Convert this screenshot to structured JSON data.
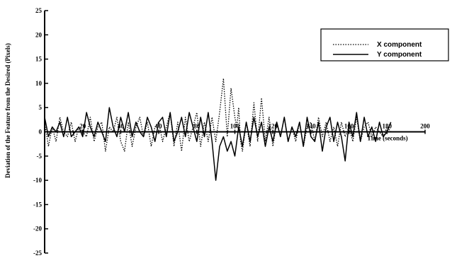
{
  "chart_data": {
    "type": "line",
    "title": "",
    "xlabel": "Time (seconds)",
    "ylabel": "Deviation of the Feature from the Desired (Pixels)",
    "xlim": [
      0,
      200
    ],
    "ylim": [
      -25,
      25
    ],
    "x_ticks": [
      20,
      40,
      60,
      80,
      100,
      120,
      140,
      160,
      180,
      200
    ],
    "x_tick_labels": [
      "20",
      "40",
      "60",
      "80",
      "100",
      "120",
      "140",
      "160",
      "180",
      "200"
    ],
    "y_ticks": [
      25,
      20,
      15,
      10,
      5,
      0,
      -5,
      -10,
      -15,
      -20,
      -25
    ],
    "y_tick_labels": [
      "25",
      "20",
      "15",
      "10",
      "5",
      "0",
      "-5",
      "-10",
      "-15",
      "-20",
      "-25"
    ],
    "grid": false,
    "legend_position": "top-right",
    "series": [
      {
        "name": "X component",
        "style": "dotted",
        "x": [
          0,
          2,
          4,
          6,
          8,
          10,
          12,
          14,
          16,
          18,
          20,
          22,
          24,
          26,
          28,
          30,
          32,
          34,
          36,
          38,
          40,
          42,
          44,
          46,
          48,
          50,
          52,
          54,
          56,
          58,
          60,
          62,
          64,
          66,
          68,
          70,
          72,
          74,
          76,
          78,
          80,
          82,
          84,
          86,
          88,
          90,
          92,
          94,
          96,
          98,
          100,
          101,
          102,
          103,
          104,
          106,
          108,
          110,
          112,
          114,
          116,
          118,
          120,
          122,
          124,
          126,
          128,
          130,
          132,
          134,
          136,
          138,
          140,
          142,
          144,
          146,
          148,
          150,
          152,
          154,
          156,
          158,
          160,
          162,
          164,
          166,
          168,
          170,
          172,
          174,
          176,
          178,
          180,
          182
        ],
        "y": [
          2,
          -3,
          1,
          -2,
          3,
          0,
          -1,
          2,
          -2,
          1,
          0,
          -1,
          3,
          -2,
          1,
          2,
          -4,
          1,
          0,
          3,
          -2,
          -4,
          2,
          -3,
          1,
          3,
          -1,
          2,
          -3,
          1,
          2,
          -2,
          1,
          4,
          -3,
          2,
          -4,
          3,
          -2,
          1,
          4,
          -3,
          2,
          -2,
          3,
          -2,
          4,
          11,
          -1,
          9,
          3,
          1,
          5,
          -2,
          -4,
          2,
          -3,
          6,
          -2,
          7,
          -2,
          3,
          -3,
          2,
          -1,
          3,
          -2,
          1,
          -2,
          2,
          -3,
          1,
          2,
          -2,
          3,
          -1,
          2,
          -2,
          1,
          -3,
          2,
          -1,
          1,
          -2,
          3,
          -2,
          1,
          2,
          -1,
          1,
          0,
          -1,
          1,
          0
        ]
      },
      {
        "name": "Y component",
        "style": "solid",
        "x": [
          0,
          2,
          4,
          6,
          8,
          10,
          12,
          14,
          16,
          18,
          20,
          22,
          24,
          26,
          28,
          30,
          32,
          34,
          36,
          38,
          40,
          42,
          44,
          46,
          48,
          50,
          52,
          54,
          56,
          58,
          60,
          62,
          64,
          66,
          68,
          70,
          72,
          74,
          76,
          78,
          80,
          82,
          84,
          86,
          88,
          90,
          92,
          94,
          96,
          98,
          100,
          102,
          104,
          106,
          108,
          110,
          112,
          114,
          116,
          118,
          120,
          122,
          124,
          126,
          128,
          130,
          132,
          134,
          136,
          138,
          140,
          142,
          144,
          146,
          148,
          150,
          152,
          154,
          156,
          158,
          160,
          162,
          164,
          166,
          168,
          170,
          172,
          174,
          176,
          178,
          180,
          182
        ],
        "y": [
          3,
          -1,
          1,
          0,
          2,
          -1,
          3,
          -1,
          0,
          1,
          -1,
          4,
          1,
          -1,
          2,
          0,
          -2,
          5,
          1,
          -1,
          3,
          0,
          4,
          -1,
          2,
          0,
          -1,
          3,
          1,
          -2,
          2,
          3,
          -1,
          4,
          -2,
          0,
          3,
          -1,
          4,
          1,
          -2,
          3,
          -1,
          4,
          -2,
          -10,
          -3,
          -1,
          -4,
          -2,
          -5,
          1,
          -3,
          2,
          -2,
          3,
          -1,
          2,
          -3,
          1,
          -2,
          2,
          -1,
          3,
          -2,
          1,
          -1,
          2,
          -3,
          3,
          -1,
          -2,
          2,
          -4,
          1,
          3,
          -2,
          2,
          -1,
          -6,
          2,
          -1,
          4,
          -2,
          3,
          -1,
          1,
          -2,
          2,
          -1,
          0,
          2
        ]
      }
    ]
  }
}
